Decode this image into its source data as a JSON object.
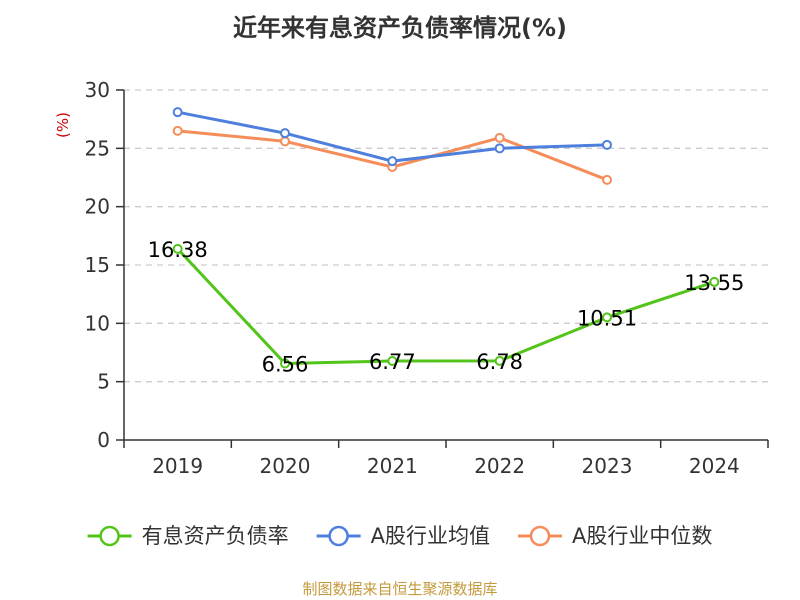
{
  "title": "近年来有息资产负债率情况(%)",
  "source_note": "制图数据来自恒生聚源数据库",
  "y_unit": "(%)",
  "colors": {
    "grid": "#cccccc",
    "axis": "#333333",
    "unit": "#cc0000",
    "source": "#c49a3c"
  },
  "chart_data": {
    "type": "line",
    "title": "近年来有息资产负债率情况(%)",
    "xlabel": "",
    "ylabel": "(%)",
    "categories": [
      "2019",
      "2020",
      "2021",
      "2022",
      "2023",
      "2024"
    ],
    "ylim": [
      0,
      30
    ],
    "yticks": [
      0,
      5,
      10,
      15,
      20,
      25,
      30
    ],
    "grid": true,
    "legend_position": "bottom",
    "series": [
      {
        "name": "有息资产负债率",
        "color": "#52c41a",
        "values": [
          16.38,
          6.56,
          6.77,
          6.78,
          10.51,
          13.55
        ],
        "labels": [
          "16.38",
          "6.56",
          "6.77",
          "6.78",
          "10.51",
          "13.55"
        ]
      },
      {
        "name": "A股行业均值",
        "color": "#4e7fdd",
        "values": [
          28.1,
          26.3,
          23.9,
          25.0,
          25.3,
          null
        ]
      },
      {
        "name": "A股行业中位数",
        "color": "#f58d5a",
        "values": [
          26.5,
          25.6,
          23.4,
          25.9,
          22.3,
          null
        ]
      }
    ]
  }
}
